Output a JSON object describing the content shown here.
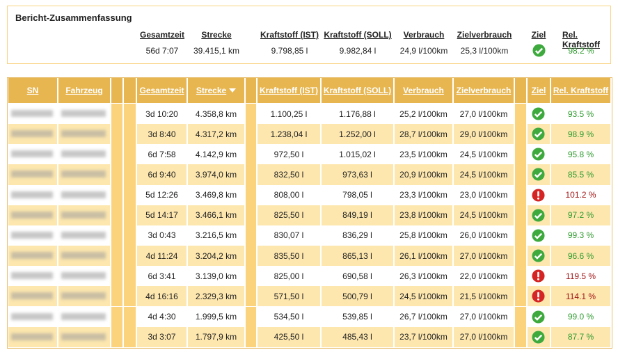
{
  "summary": {
    "title": "Bericht-Zusammenfassung",
    "columns": [
      {
        "header": "Gesamtzeit",
        "value": "56d 7:07"
      },
      {
        "header": "Strecke",
        "value": "39.415,1 km"
      },
      {
        "header": "Kraftstoff (IST)",
        "value": "9.798,85 l"
      },
      {
        "header": "Kraftstoff (SOLL)",
        "value": "9.982,84 l"
      },
      {
        "header": "Verbrauch",
        "value": "24,9 l/100km"
      },
      {
        "header": "Zielverbrauch",
        "value": "25,3 l/100km"
      },
      {
        "header": "Ziel"
      },
      {
        "header": "Rel. Kraftstoff",
        "value": "98.2 %"
      }
    ]
  },
  "table": {
    "headers": [
      "SN",
      "Fahrzeug",
      "Gesamtzeit",
      "Strecke",
      "Kraftstoff (IST)",
      "Kraftstoff (SOLL)",
      "Verbrauch",
      "Zielverbrauch",
      "Ziel",
      "Rel. Kraftstoff"
    ],
    "rows": [
      [
        "3d 10:20",
        "4.358,8 km",
        "1.100,25 l",
        "1.176,88 l",
        "25,2 l/100km",
        "27,0 l/100km",
        "93.5 %"
      ],
      [
        "3d 8:40",
        "4.317,2 km",
        "1.238,04 l",
        "1.252,00 l",
        "28,7 l/100km",
        "29,0 l/100km",
        "98.9 %"
      ],
      [
        "6d 7:58",
        "4.142,9 km",
        "972,50 l",
        "1.015,02 l",
        "23,5 l/100km",
        "24,5 l/100km",
        "95.8 %"
      ],
      [
        "6d 9:40",
        "3.974,0 km",
        "832,50 l",
        "973,63 l",
        "20,9 l/100km",
        "24,5 l/100km",
        "85.5 %"
      ],
      [
        "5d 12:26",
        "3.469,8 km",
        "808,00 l",
        "798,05 l",
        "23,3 l/100km",
        "23,0 l/100km",
        "101.2 %"
      ],
      [
        "5d 14:17",
        "3.466,1 km",
        "825,50 l",
        "849,19 l",
        "23,8 l/100km",
        "24,5 l/100km",
        "97.2 %"
      ],
      [
        "3d 0:43",
        "3.216,5 km",
        "830,07 l",
        "836,29 l",
        "25,8 l/100km",
        "26,0 l/100km",
        "99.3 %"
      ],
      [
        "4d 11:24",
        "3.204,2 km",
        "835,50 l",
        "865,13 l",
        "26,1 l/100km",
        "27,0 l/100km",
        "96.6 %"
      ],
      [
        "6d 3:41",
        "3.139,0 km",
        "825,00 l",
        "690,58 l",
        "26,3 l/100km",
        "22,0 l/100km",
        "119.5 %"
      ],
      [
        "4d 16:16",
        "2.329,3 km",
        "571,50 l",
        "500,79 l",
        "24,5 l/100km",
        "21,5 l/100km",
        "114.1 %"
      ],
      [
        "4d 4:30",
        "1.999,5 km",
        "534,50 l",
        "539,85 l",
        "26,7 l/100km",
        "27,0 l/100km",
        "99.0 %"
      ],
      [
        "3d 3:07",
        "1.797,9 km",
        "425,50 l",
        "485,43 l",
        "23,7 l/100km",
        "27,0 l/100km",
        "87.7 %"
      ]
    ]
  }
}
